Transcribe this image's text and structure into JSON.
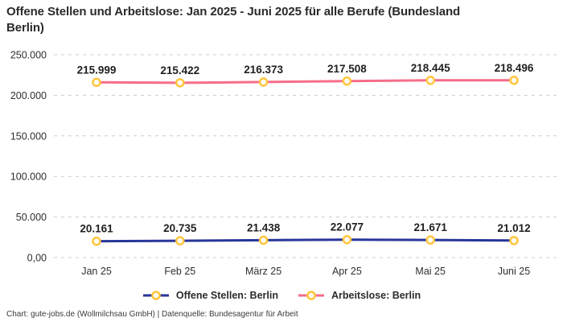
{
  "title": "Offene Stellen und Arbeitslose: Jan 2025 - Juni 2025 für alle Berufe (Bundesland Berlin)",
  "title_lines": {
    "line1": "Offene Stellen und Arbeitslose: Jan 2025 - Juni 2025 für alle Berufe (Bundesland",
    "line2": "Berlin)"
  },
  "footer": "Chart: gute-jobs.de (Wollmilchsau GmbH) | Datenquelle: Bundesagentur für Arbeit",
  "colors": {
    "offene_stellen_line": "#283699",
    "arbeitslose_line": "#f56e8a",
    "marker_ring": "#ffc53d",
    "marker_fill": "#ffffff",
    "gridline": "#cccccc",
    "axis_text": "#2e2e2e",
    "data_label_text": "#1f1f1f",
    "background": "#ffffff"
  },
  "chart_data": {
    "type": "line",
    "title": "Offene Stellen und Arbeitslose: Jan 2025 - Juni 2025 für alle Berufe (Bundesland Berlin)",
    "categories": [
      "Jan 25",
      "Feb 25",
      "März 25",
      "Apr 25",
      "Mai 25",
      "Juni 25"
    ],
    "series": [
      {
        "name": "Offene Stellen: Berlin",
        "values": [
          20161,
          20735,
          21438,
          22077,
          21671,
          21012
        ],
        "labels": [
          "20.161",
          "20.735",
          "21.438",
          "22.077",
          "21.671",
          "21.012"
        ],
        "color": "#283699"
      },
      {
        "name": "Arbeitslose: Berlin",
        "values": [
          215999,
          215422,
          216373,
          217508,
          218445,
          218496
        ],
        "labels": [
          "215.999",
          "215.422",
          "216.373",
          "217.508",
          "218.445",
          "218.496"
        ],
        "color": "#f56e8a"
      }
    ],
    "y_ticks": [
      {
        "value": 0,
        "label": "0,00"
      },
      {
        "value": 50000,
        "label": "50.000"
      },
      {
        "value": 100000,
        "label": "100.000"
      },
      {
        "value": 150000,
        "label": "150.000"
      },
      {
        "value": 200000,
        "label": "200.000"
      },
      {
        "value": 250000,
        "label": "250.000"
      }
    ],
    "ylim": [
      0,
      250000
    ],
    "xlabel": "",
    "ylabel": "",
    "grid": "horizontal-dashed",
    "legend_position": "bottom",
    "marker": {
      "fill": "#ffffff",
      "stroke": "#ffc53d"
    }
  }
}
